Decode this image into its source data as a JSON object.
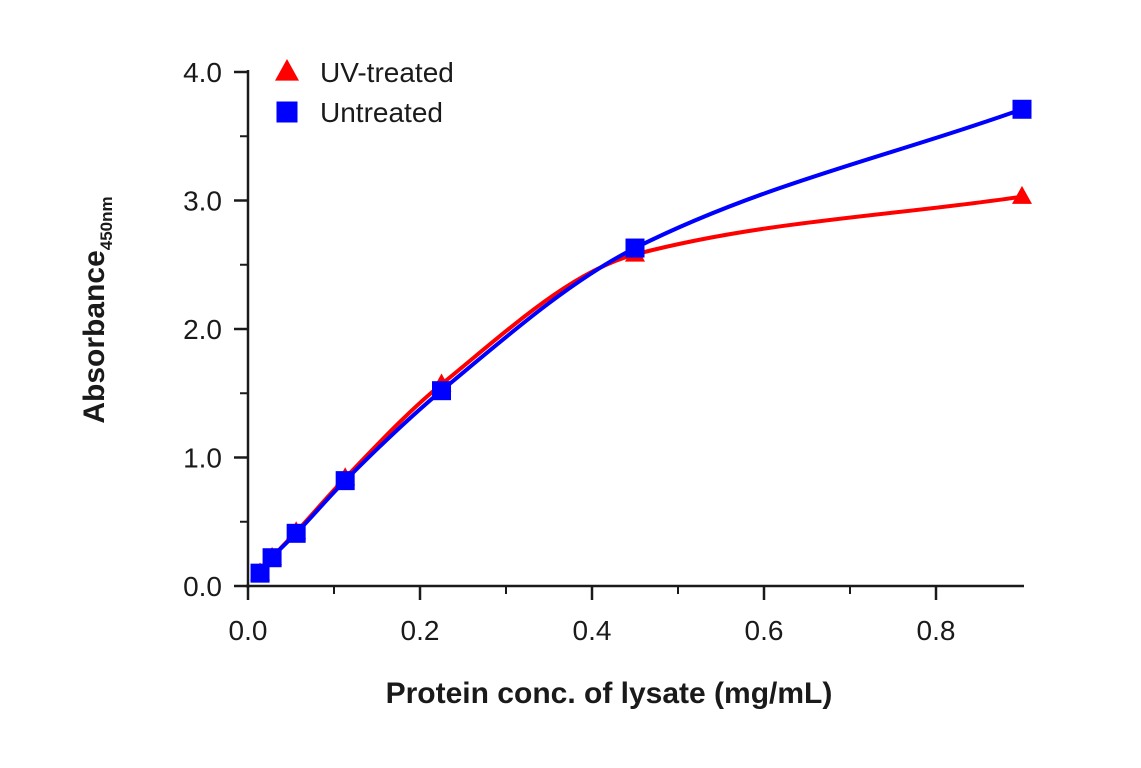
{
  "chart_data": {
    "type": "line",
    "xlabel": "Protein conc. of lysate (mg/mL)",
    "ylabel": "Absorbance",
    "ylabel_subscript": "450nm",
    "xlim": [
      0,
      0.9
    ],
    "ylim": [
      0,
      4.0
    ],
    "x_ticks": [
      0.0,
      0.2,
      0.4,
      0.6,
      0.8
    ],
    "x_tick_labels": [
      "0.0",
      "0.2",
      "0.4",
      "0.6",
      "0.8"
    ],
    "y_ticks": [
      0.0,
      1.0,
      2.0,
      3.0,
      4.0
    ],
    "y_tick_labels": [
      "0.0",
      "1.0",
      "2.0",
      "3.0",
      "4.0"
    ],
    "grid": false,
    "legend_position": "top-left",
    "series": [
      {
        "name": "UV-treated",
        "marker": "triangle",
        "color": "#ff0000",
        "x": [
          0.014,
          0.028,
          0.056,
          0.113,
          0.225,
          0.45,
          0.9
        ],
        "y": [
          0.1,
          0.22,
          0.42,
          0.84,
          1.57,
          2.58,
          3.03
        ]
      },
      {
        "name": "Untreated",
        "marker": "square",
        "color": "#0000ff",
        "x": [
          0.014,
          0.028,
          0.056,
          0.113,
          0.225,
          0.45,
          0.9
        ],
        "y": [
          0.1,
          0.22,
          0.41,
          0.82,
          1.52,
          2.63,
          3.71
        ]
      }
    ]
  }
}
